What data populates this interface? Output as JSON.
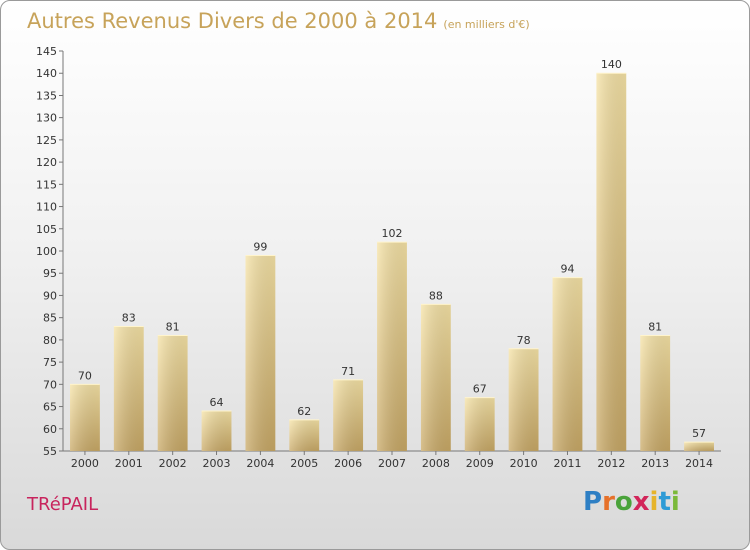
{
  "title": "Autres Revenus Divers de 2000 à 2014",
  "unit": "(en milliers d'€)",
  "commune": "TRéPAIL",
  "logo": {
    "text": "Proxiti",
    "letters": [
      "P",
      "r",
      "o",
      "x",
      "i",
      "t",
      "i"
    ],
    "colors": [
      "#2e7fc4",
      "#e6712a",
      "#4aa33b",
      "#d2265a",
      "#e6b42a",
      "#2e9bd6",
      "#7bb93a"
    ]
  },
  "colors": {
    "bar_light": "#f6e3a6",
    "bar_dark": "#c9a966",
    "title": "#c7a35a",
    "commune": "#c8245d"
  },
  "chart_data": {
    "type": "bar",
    "categories": [
      "2000",
      "2001",
      "2002",
      "2003",
      "2004",
      "2005",
      "2006",
      "2007",
      "2008",
      "2009",
      "2010",
      "2011",
      "2012",
      "2013",
      "2014"
    ],
    "values": [
      70,
      83,
      81,
      64,
      99,
      62,
      71,
      102,
      88,
      67,
      78,
      94,
      140,
      81,
      57
    ],
    "title": "Autres Revenus Divers de 2000 à 2014",
    "ylim": [
      55,
      145
    ],
    "yticks": [
      55,
      60,
      65,
      70,
      75,
      80,
      85,
      90,
      95,
      100,
      105,
      110,
      115,
      120,
      125,
      130,
      135,
      140,
      145
    ],
    "grid": false,
    "data_labels": true
  }
}
